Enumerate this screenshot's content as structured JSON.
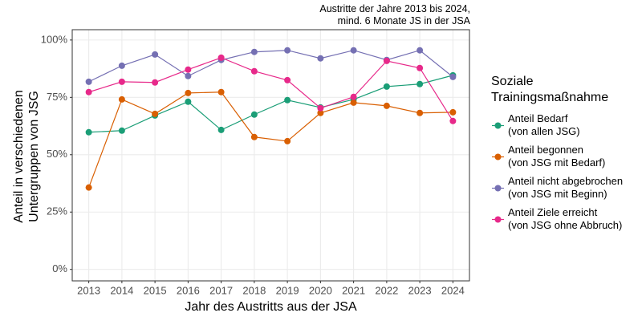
{
  "chart_data": {
    "type": "line",
    "subtitle": "Austritte der Jahre 2013 bis 2024,\nmind. 6 Monate JS in der JSA",
    "x_label": "Jahr des Austritts aus der JSA",
    "y_label": "Anteil in verschiedenen\nUntergruppen von JSG",
    "legend_title": "Soziale\nTrainingsmaßnahme",
    "legend_position": "right",
    "grid": true,
    "x": [
      2013,
      2014,
      2015,
      2016,
      2017,
      2018,
      2019,
      2020,
      2021,
      2022,
      2023,
      2024
    ],
    "xlim": [
      2012.5,
      2024.5
    ],
    "xticks": [
      2013,
      2014,
      2015,
      2016,
      2017,
      2018,
      2019,
      2020,
      2021,
      2022,
      2023,
      2024
    ],
    "ylim": [
      -5,
      104.5
    ],
    "yticks": [
      {
        "value": 0,
        "label": "0%"
      },
      {
        "value": 25,
        "label": "25%"
      },
      {
        "value": 50,
        "label": "50%"
      },
      {
        "value": 75,
        "label": "75%"
      },
      {
        "value": 100,
        "label": "100%"
      }
    ],
    "series": [
      {
        "name": "Anteil Bedarf\n(von allen JSG)",
        "color": "#1b9e77",
        "values": [
          59.8,
          60.5,
          67.1,
          73.1,
          60.8,
          67.5,
          73.8,
          70.6,
          74.1,
          79.7,
          80.8,
          84.6
        ]
      },
      {
        "name": "Anteil begonnen\n(von JSG mit Bedarf)",
        "color": "#d95f02",
        "values": [
          35.7,
          74.1,
          67.8,
          76.9,
          77.3,
          57.7,
          55.9,
          68.2,
          72.7,
          71.3,
          68.2,
          68.5
        ]
      },
      {
        "name": "Anteil nicht abgebrochen\n(von JSG mit Beginn)",
        "color": "#7570b3",
        "values": [
          81.8,
          88.8,
          93.7,
          84.3,
          91.3,
          94.8,
          95.5,
          92.0,
          95.5,
          91.3,
          95.5,
          83.9
        ]
      },
      {
        "name": "Anteil Ziele erreicht\n(von JSG ohne Abbruch)",
        "color": "#e7298a",
        "values": [
          77.3,
          81.8,
          81.5,
          87.1,
          92.3,
          86.4,
          82.5,
          70.3,
          75.2,
          90.9,
          87.8,
          64.7
        ]
      }
    ]
  }
}
